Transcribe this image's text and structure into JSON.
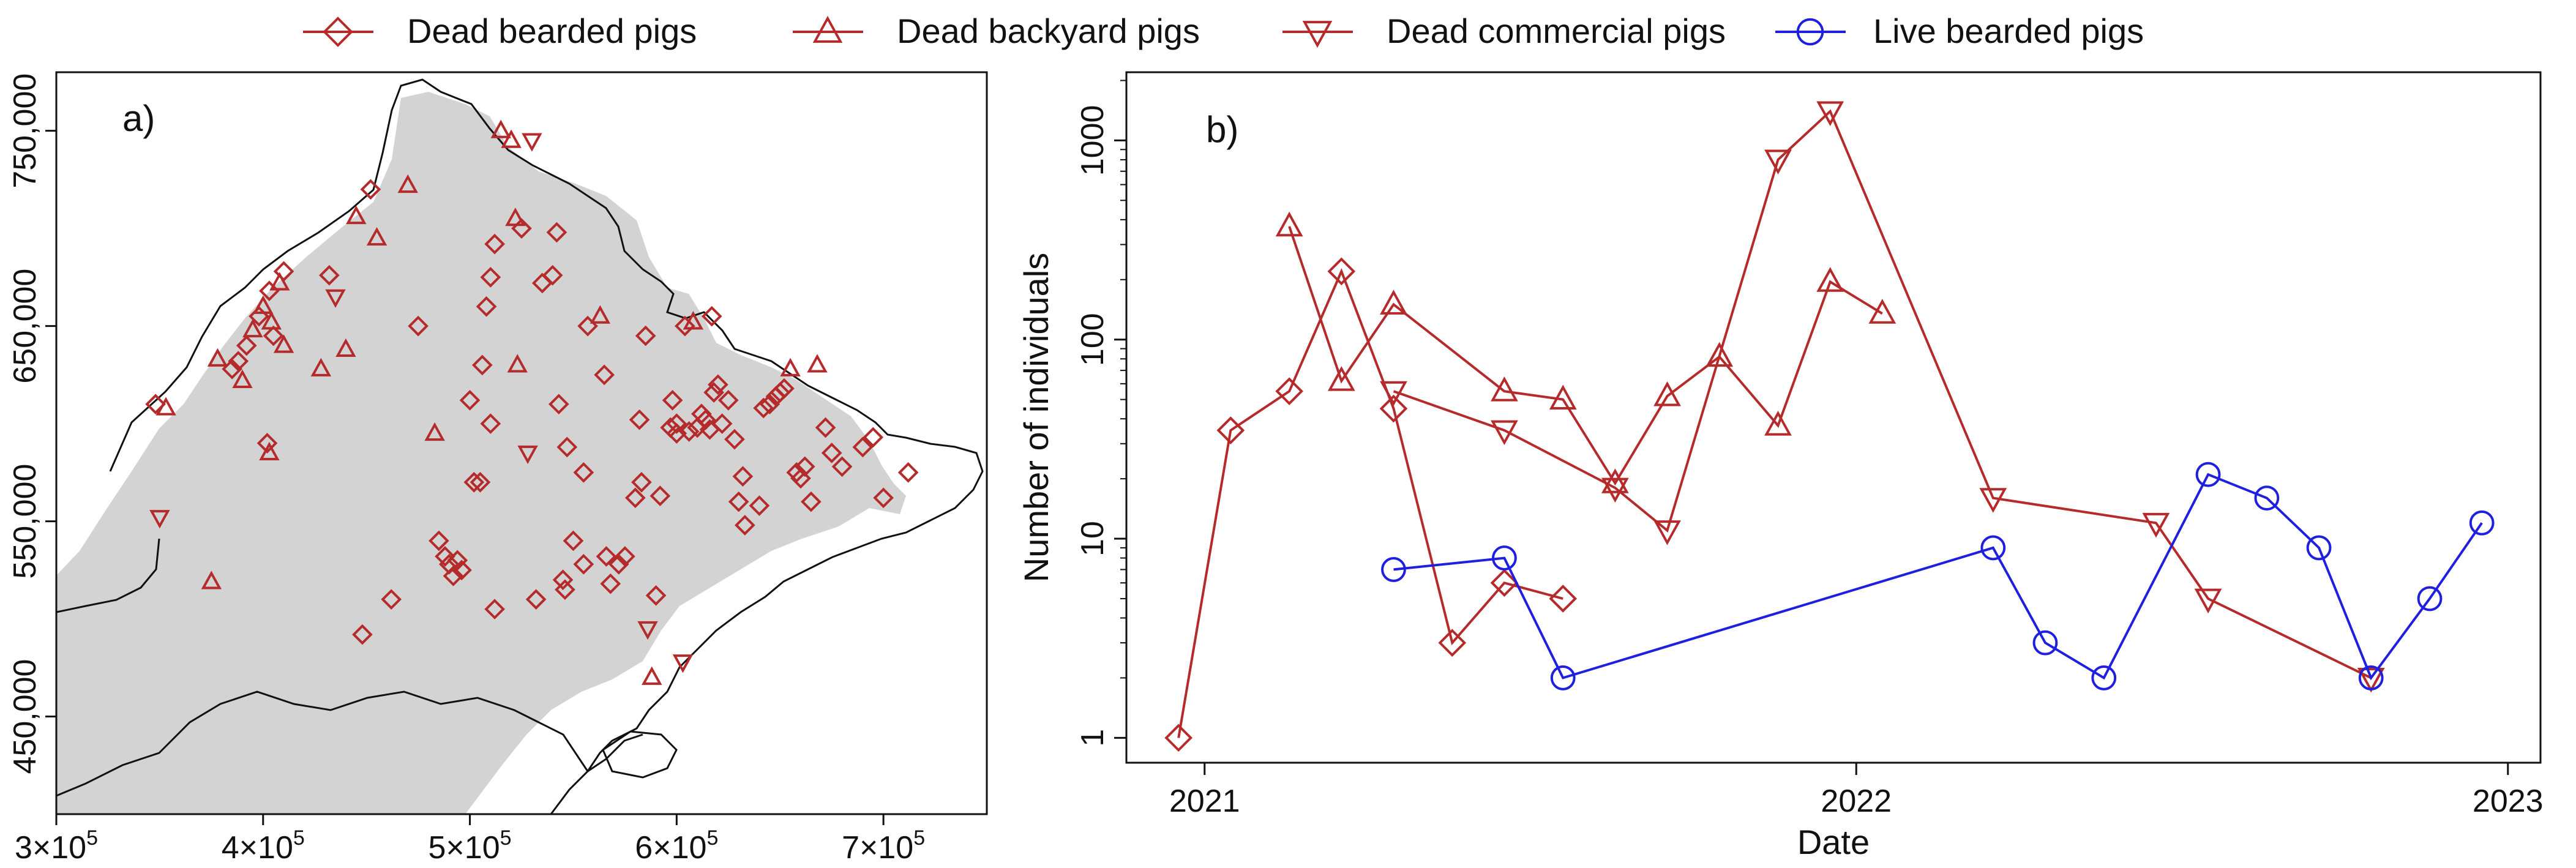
{
  "legend": {
    "items": [
      {
        "name": "Dead bearded pigs",
        "marker": "diamond",
        "color": "#b52a2a"
      },
      {
        "name": "Dead backyard pigs",
        "marker": "triangle-up",
        "color": "#b52a2a"
      },
      {
        "name": "Dead commercial pigs",
        "marker": "triangle-down",
        "color": "#b52a2a"
      },
      {
        "name": "Live bearded pigs",
        "marker": "circle",
        "color": "#1f1fe0"
      }
    ]
  },
  "colors": {
    "dead": "#b52a2a",
    "live": "#1f1fe0",
    "forest": "#d3d3d3",
    "border": "#111111"
  },
  "chart_data": [
    {
      "type": "map",
      "panel_label": "a)",
      "xlim": [
        300000,
        750000
      ],
      "ylim": [
        400000,
        780000
      ],
      "x_ticks": [
        {
          "value": 300000,
          "base": "3×10",
          "exp": "5"
        },
        {
          "value": 400000,
          "base": "4×10",
          "exp": "5"
        },
        {
          "value": 500000,
          "base": "5×10",
          "exp": "5"
        },
        {
          "value": 600000,
          "base": "6×10",
          "exp": "5"
        },
        {
          "value": 700000,
          "base": "7×10",
          "exp": "5"
        }
      ],
      "y_ticks": [
        {
          "value": 450000,
          "label": "450,000"
        },
        {
          "value": 550000,
          "label": "550,000"
        },
        {
          "value": 650000,
          "label": "650,000"
        },
        {
          "value": 750000,
          "label": "750,000"
        }
      ],
      "points": [
        {
          "x": 353000,
          "y": 608000,
          "s": "dead_backyard"
        },
        {
          "x": 348000,
          "y": 610000,
          "s": "dead_bearded"
        },
        {
          "x": 350000,
          "y": 552000,
          "s": "dead_commercial"
        },
        {
          "x": 375000,
          "y": 519000,
          "s": "dead_backyard"
        },
        {
          "x": 378000,
          "y": 633000,
          "s": "dead_backyard"
        },
        {
          "x": 385000,
          "y": 628000,
          "s": "dead_bearded"
        },
        {
          "x": 388000,
          "y": 632000,
          "s": "dead_bearded"
        },
        {
          "x": 390000,
          "y": 622000,
          "s": "dead_backyard"
        },
        {
          "x": 392000,
          "y": 640000,
          "s": "dead_bearded"
        },
        {
          "x": 395000,
          "y": 648000,
          "s": "dead_backyard"
        },
        {
          "x": 398000,
          "y": 655000,
          "s": "dead_bearded"
        },
        {
          "x": 400000,
          "y": 660000,
          "s": "dead_backyard"
        },
        {
          "x": 403000,
          "y": 668000,
          "s": "dead_bearded"
        },
        {
          "x": 404000,
          "y": 652000,
          "s": "dead_backyard"
        },
        {
          "x": 405000,
          "y": 645000,
          "s": "dead_bearded"
        },
        {
          "x": 408000,
          "y": 672000,
          "s": "dead_backyard"
        },
        {
          "x": 410000,
          "y": 678000,
          "s": "dead_bearded"
        },
        {
          "x": 402000,
          "y": 590000,
          "s": "dead_bearded"
        },
        {
          "x": 403000,
          "y": 585000,
          "s": "dead_backyard"
        },
        {
          "x": 410000,
          "y": 640000,
          "s": "dead_backyard"
        },
        {
          "x": 428000,
          "y": 628000,
          "s": "dead_backyard"
        },
        {
          "x": 432000,
          "y": 676000,
          "s": "dead_bearded"
        },
        {
          "x": 435000,
          "y": 665000,
          "s": "dead_commercial"
        },
        {
          "x": 440000,
          "y": 638000,
          "s": "dead_backyard"
        },
        {
          "x": 445000,
          "y": 706000,
          "s": "dead_backyard"
        },
        {
          "x": 452000,
          "y": 720000,
          "s": "dead_bearded"
        },
        {
          "x": 455000,
          "y": 695000,
          "s": "dead_backyard"
        },
        {
          "x": 448000,
          "y": 492000,
          "s": "dead_bearded"
        },
        {
          "x": 462000,
          "y": 510000,
          "s": "dead_bearded"
        },
        {
          "x": 470000,
          "y": 722000,
          "s": "dead_backyard"
        },
        {
          "x": 475000,
          "y": 650000,
          "s": "dead_bearded"
        },
        {
          "x": 483000,
          "y": 595000,
          "s": "dead_backyard"
        },
        {
          "x": 485000,
          "y": 540000,
          "s": "dead_bearded"
        },
        {
          "x": 488000,
          "y": 532000,
          "s": "dead_bearded"
        },
        {
          "x": 490000,
          "y": 528000,
          "s": "dead_bearded"
        },
        {
          "x": 492000,
          "y": 522000,
          "s": "dead_bearded"
        },
        {
          "x": 494000,
          "y": 530000,
          "s": "dead_bearded"
        },
        {
          "x": 496000,
          "y": 525000,
          "s": "dead_bearded"
        },
        {
          "x": 500000,
          "y": 612000,
          "s": "dead_bearded"
        },
        {
          "x": 502000,
          "y": 570000,
          "s": "dead_bearded"
        },
        {
          "x": 505000,
          "y": 570000,
          "s": "dead_bearded"
        },
        {
          "x": 506000,
          "y": 630000,
          "s": "dead_bearded"
        },
        {
          "x": 508000,
          "y": 660000,
          "s": "dead_bearded"
        },
        {
          "x": 510000,
          "y": 600000,
          "s": "dead_bearded"
        },
        {
          "x": 510000,
          "y": 675000,
          "s": "dead_bearded"
        },
        {
          "x": 512000,
          "y": 692000,
          "s": "dead_bearded"
        },
        {
          "x": 512000,
          "y": 505000,
          "s": "dead_bearded"
        },
        {
          "x": 515000,
          "y": 750000,
          "s": "dead_backyard"
        },
        {
          "x": 520000,
          "y": 745000,
          "s": "dead_backyard"
        },
        {
          "x": 522000,
          "y": 705000,
          "s": "dead_backyard"
        },
        {
          "x": 525000,
          "y": 700000,
          "s": "dead_bearded"
        },
        {
          "x": 523000,
          "y": 630000,
          "s": "dead_backyard"
        },
        {
          "x": 528000,
          "y": 585000,
          "s": "dead_commercial"
        },
        {
          "x": 530000,
          "y": 745000,
          "s": "dead_commercial"
        },
        {
          "x": 532000,
          "y": 510000,
          "s": "dead_bearded"
        },
        {
          "x": 535000,
          "y": 672000,
          "s": "dead_bearded"
        },
        {
          "x": 540000,
          "y": 676000,
          "s": "dead_bearded"
        },
        {
          "x": 542000,
          "y": 698000,
          "s": "dead_bearded"
        },
        {
          "x": 543000,
          "y": 610000,
          "s": "dead_bearded"
        },
        {
          "x": 545000,
          "y": 520000,
          "s": "dead_bearded"
        },
        {
          "x": 546000,
          "y": 515000,
          "s": "dead_bearded"
        },
        {
          "x": 547000,
          "y": 588000,
          "s": "dead_bearded"
        },
        {
          "x": 550000,
          "y": 540000,
          "s": "dead_bearded"
        },
        {
          "x": 555000,
          "y": 575000,
          "s": "dead_bearded"
        },
        {
          "x": 555000,
          "y": 528000,
          "s": "dead_bearded"
        },
        {
          "x": 557000,
          "y": 650000,
          "s": "dead_bearded"
        },
        {
          "x": 563000,
          "y": 655000,
          "s": "dead_backyard"
        },
        {
          "x": 565000,
          "y": 625000,
          "s": "dead_bearded"
        },
        {
          "x": 566000,
          "y": 532000,
          "s": "dead_bearded"
        },
        {
          "x": 568000,
          "y": 518000,
          "s": "dead_bearded"
        },
        {
          "x": 572000,
          "y": 528000,
          "s": "dead_bearded"
        },
        {
          "x": 575000,
          "y": 532000,
          "s": "dead_bearded"
        },
        {
          "x": 580000,
          "y": 562000,
          "s": "dead_bearded"
        },
        {
          "x": 582000,
          "y": 602000,
          "s": "dead_bearded"
        },
        {
          "x": 583000,
          "y": 570000,
          "s": "dead_bearded"
        },
        {
          "x": 585000,
          "y": 645000,
          "s": "dead_bearded"
        },
        {
          "x": 586000,
          "y": 495000,
          "s": "dead_commercial"
        },
        {
          "x": 588000,
          "y": 470000,
          "s": "dead_backyard"
        },
        {
          "x": 590000,
          "y": 512000,
          "s": "dead_bearded"
        },
        {
          "x": 592000,
          "y": 563000,
          "s": "dead_bearded"
        },
        {
          "x": 597000,
          "y": 598000,
          "s": "dead_bearded"
        },
        {
          "x": 598000,
          "y": 612000,
          "s": "dead_bearded"
        },
        {
          "x": 600000,
          "y": 595000,
          "s": "dead_bearded"
        },
        {
          "x": 600000,
          "y": 600000,
          "s": "dead_bearded"
        },
        {
          "x": 603000,
          "y": 478000,
          "s": "dead_commercial"
        },
        {
          "x": 604000,
          "y": 650000,
          "s": "dead_bearded"
        },
        {
          "x": 606000,
          "y": 596000,
          "s": "dead_bearded"
        },
        {
          "x": 608000,
          "y": 652000,
          "s": "dead_backyard"
        },
        {
          "x": 610000,
          "y": 598000,
          "s": "dead_bearded"
        },
        {
          "x": 612000,
          "y": 605000,
          "s": "dead_bearded"
        },
        {
          "x": 614000,
          "y": 602000,
          "s": "dead_bearded"
        },
        {
          "x": 616000,
          "y": 597000,
          "s": "dead_bearded"
        },
        {
          "x": 617000,
          "y": 655000,
          "s": "dead_bearded"
        },
        {
          "x": 618000,
          "y": 616000,
          "s": "dead_bearded"
        },
        {
          "x": 620000,
          "y": 620000,
          "s": "dead_bearded"
        },
        {
          "x": 622000,
          "y": 600000,
          "s": "dead_bearded"
        },
        {
          "x": 625000,
          "y": 612000,
          "s": "dead_bearded"
        },
        {
          "x": 628000,
          "y": 592000,
          "s": "dead_bearded"
        },
        {
          "x": 630000,
          "y": 560000,
          "s": "dead_bearded"
        },
        {
          "x": 632000,
          "y": 573000,
          "s": "dead_bearded"
        },
        {
          "x": 633000,
          "y": 548000,
          "s": "dead_bearded"
        },
        {
          "x": 640000,
          "y": 558000,
          "s": "dead_bearded"
        },
        {
          "x": 642000,
          "y": 608000,
          "s": "dead_bearded"
        },
        {
          "x": 645000,
          "y": 610000,
          "s": "dead_bearded"
        },
        {
          "x": 648000,
          "y": 614000,
          "s": "dead_bearded"
        },
        {
          "x": 650000,
          "y": 616000,
          "s": "dead_bearded"
        },
        {
          "x": 652000,
          "y": 618000,
          "s": "dead_bearded"
        },
        {
          "x": 655000,
          "y": 628000,
          "s": "dead_backyard"
        },
        {
          "x": 658000,
          "y": 575000,
          "s": "dead_bearded"
        },
        {
          "x": 660000,
          "y": 572000,
          "s": "dead_bearded"
        },
        {
          "x": 662000,
          "y": 578000,
          "s": "dead_bearded"
        },
        {
          "x": 665000,
          "y": 560000,
          "s": "dead_bearded"
        },
        {
          "x": 668000,
          "y": 630000,
          "s": "dead_backyard"
        },
        {
          "x": 672000,
          "y": 598000,
          "s": "dead_bearded"
        },
        {
          "x": 675000,
          "y": 585000,
          "s": "dead_bearded"
        },
        {
          "x": 680000,
          "y": 578000,
          "s": "dead_bearded"
        },
        {
          "x": 690000,
          "y": 588000,
          "s": "dead_bearded"
        },
        {
          "x": 695000,
          "y": 593000,
          "s": "dead_bearded"
        },
        {
          "x": 700000,
          "y": 562000,
          "s": "dead_bearded"
        },
        {
          "x": 712000,
          "y": 575000,
          "s": "dead_bearded"
        }
      ]
    },
    {
      "type": "line",
      "panel_label": "b)",
      "xlabel": "Date",
      "ylabel": "Number of individuals",
      "yscale": "log",
      "xlim": [
        2020.88,
        2023.05
      ],
      "ylim": [
        0.75,
        2200
      ],
      "x_ticks": [
        {
          "value": 2021,
          "label": "2021"
        },
        {
          "value": 2022,
          "label": "2022"
        },
        {
          "value": 2023,
          "label": "2023"
        }
      ],
      "y_ticks": [
        {
          "value": 1,
          "label": "1"
        },
        {
          "value": 10,
          "label": "10"
        },
        {
          "value": 100,
          "label": "100"
        },
        {
          "value": 1000,
          "label": "1000"
        }
      ],
      "series": [
        {
          "name": "Dead bearded pigs",
          "marker": "diamond",
          "color": "#b52a2a",
          "x": [
            2020.96,
            2021.04,
            2021.13,
            2021.21,
            2021.29,
            2021.38,
            2021.46,
            2021.55
          ],
          "y": [
            1,
            35,
            55,
            220,
            45,
            3,
            6,
            5
          ]
        },
        {
          "name": "Dead backyard pigs",
          "marker": "triangle-up",
          "color": "#b52a2a",
          "x": [
            2021.13,
            2021.21,
            2021.29,
            2021.46,
            2021.55,
            2021.63,
            2021.71,
            2021.79,
            2021.88,
            2021.96,
            2022.04
          ],
          "y": [
            370,
            62,
            150,
            55,
            50,
            19,
            52,
            82,
            37,
            195,
            135
          ]
        },
        {
          "name": "Dead commercial pigs",
          "marker": "triangle-down",
          "color": "#b52a2a",
          "x": [
            2021.29,
            2021.46,
            2021.63,
            2021.71,
            2021.88,
            2021.96,
            2022.21,
            2022.46,
            2022.54,
            2022.79
          ],
          "y": [
            55,
            35,
            18,
            11,
            800,
            1400,
            16,
            12,
            5,
            2
          ]
        },
        {
          "name": "Live bearded pigs",
          "marker": "circle",
          "color": "#1f1fe0",
          "x": [
            2021.29,
            2021.46,
            2021.55,
            2022.21,
            2022.29,
            2022.38,
            2022.54,
            2022.63,
            2022.71,
            2022.79,
            2022.88,
            2022.96
          ],
          "y": [
            7,
            8,
            2,
            9,
            3,
            2,
            21,
            16,
            9,
            2,
            5,
            12
          ]
        }
      ]
    }
  ]
}
